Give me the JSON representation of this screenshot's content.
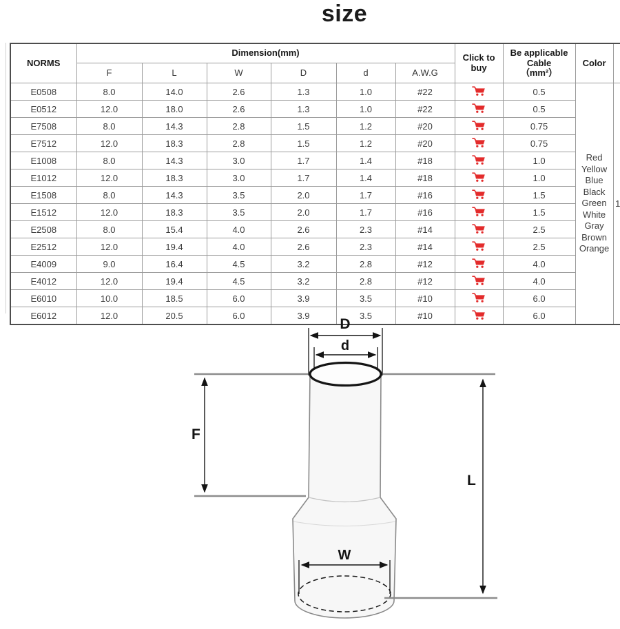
{
  "page": {
    "title": "size"
  },
  "table": {
    "headers": {
      "norms": "NORMS",
      "dimension_group": "Dimension(mm)",
      "dimension_cols": [
        "F",
        "L",
        "W",
        "D",
        "d",
        "A.W.G"
      ],
      "click_to_buy": "Click to buy",
      "cable_label": "Be applicable\nCable\n（mm²）",
      "color": "Color"
    },
    "rows": [
      {
        "norm": "E0508",
        "f": "8.0",
        "l": "14.0",
        "w": "2.6",
        "d": "1.3",
        "d_inner": "1.0",
        "awg": "#22",
        "cable": "0.5"
      },
      {
        "norm": "E0512",
        "f": "12.0",
        "l": "18.0",
        "w": "2.6",
        "d": "1.3",
        "d_inner": "1.0",
        "awg": "#22",
        "cable": "0.5"
      },
      {
        "norm": "E7508",
        "f": "8.0",
        "l": "14.3",
        "w": "2.8",
        "d": "1.5",
        "d_inner": "1.2",
        "awg": "#20",
        "cable": "0.75"
      },
      {
        "norm": "E7512",
        "f": "12.0",
        "l": "18.3",
        "w": "2.8",
        "d": "1.5",
        "d_inner": "1.2",
        "awg": "#20",
        "cable": "0.75"
      },
      {
        "norm": "E1008",
        "f": "8.0",
        "l": "14.3",
        "w": "3.0",
        "d": "1.7",
        "d_inner": "1.4",
        "awg": "#18",
        "cable": "1.0"
      },
      {
        "norm": "E1012",
        "f": "12.0",
        "l": "18.3",
        "w": "3.0",
        "d": "1.7",
        "d_inner": "1.4",
        "awg": "#18",
        "cable": "1.0"
      },
      {
        "norm": "E1508",
        "f": "8.0",
        "l": "14.3",
        "w": "3.5",
        "d": "2.0",
        "d_inner": "1.7",
        "awg": "#16",
        "cable": "1.5"
      },
      {
        "norm": "E1512",
        "f": "12.0",
        "l": "18.3",
        "w": "3.5",
        "d": "2.0",
        "d_inner": "1.7",
        "awg": "#16",
        "cable": "1.5"
      },
      {
        "norm": "E2508",
        "f": "8.0",
        "l": "15.4",
        "w": "4.0",
        "d": "2.6",
        "d_inner": "2.3",
        "awg": "#14",
        "cable": "2.5"
      },
      {
        "norm": "E2512",
        "f": "12.0",
        "l": "19.4",
        "w": "4.0",
        "d": "2.6",
        "d_inner": "2.3",
        "awg": "#14",
        "cable": "2.5"
      },
      {
        "norm": "E4009",
        "f": "9.0",
        "l": "16.4",
        "w": "4.5",
        "d": "3.2",
        "d_inner": "2.8",
        "awg": "#12",
        "cable": "4.0"
      },
      {
        "norm": "E4012",
        "f": "12.0",
        "l": "19.4",
        "w": "4.5",
        "d": "3.2",
        "d_inner": "2.8",
        "awg": "#12",
        "cable": "4.0"
      },
      {
        "norm": "E6010",
        "f": "10.0",
        "l": "18.5",
        "w": "6.0",
        "d": "3.9",
        "d_inner": "3.5",
        "awg": "#10",
        "cable": "6.0"
      },
      {
        "norm": "E6012",
        "f": "12.0",
        "l": "20.5",
        "w": "6.0",
        "d": "3.9",
        "d_inner": "3.5",
        "awg": "#10",
        "cable": "6.0"
      }
    ],
    "colors_label": "Red\nYellow\nBlue\nBlack\nGreen\nWhite\nGray\nBrown\nOrange",
    "partial_col_value": "1",
    "cart_color": "#e32b2b"
  },
  "diagram": {
    "labels": {
      "D": "D",
      "d": "d",
      "F": "F",
      "L": "L",
      "W": "W"
    }
  }
}
